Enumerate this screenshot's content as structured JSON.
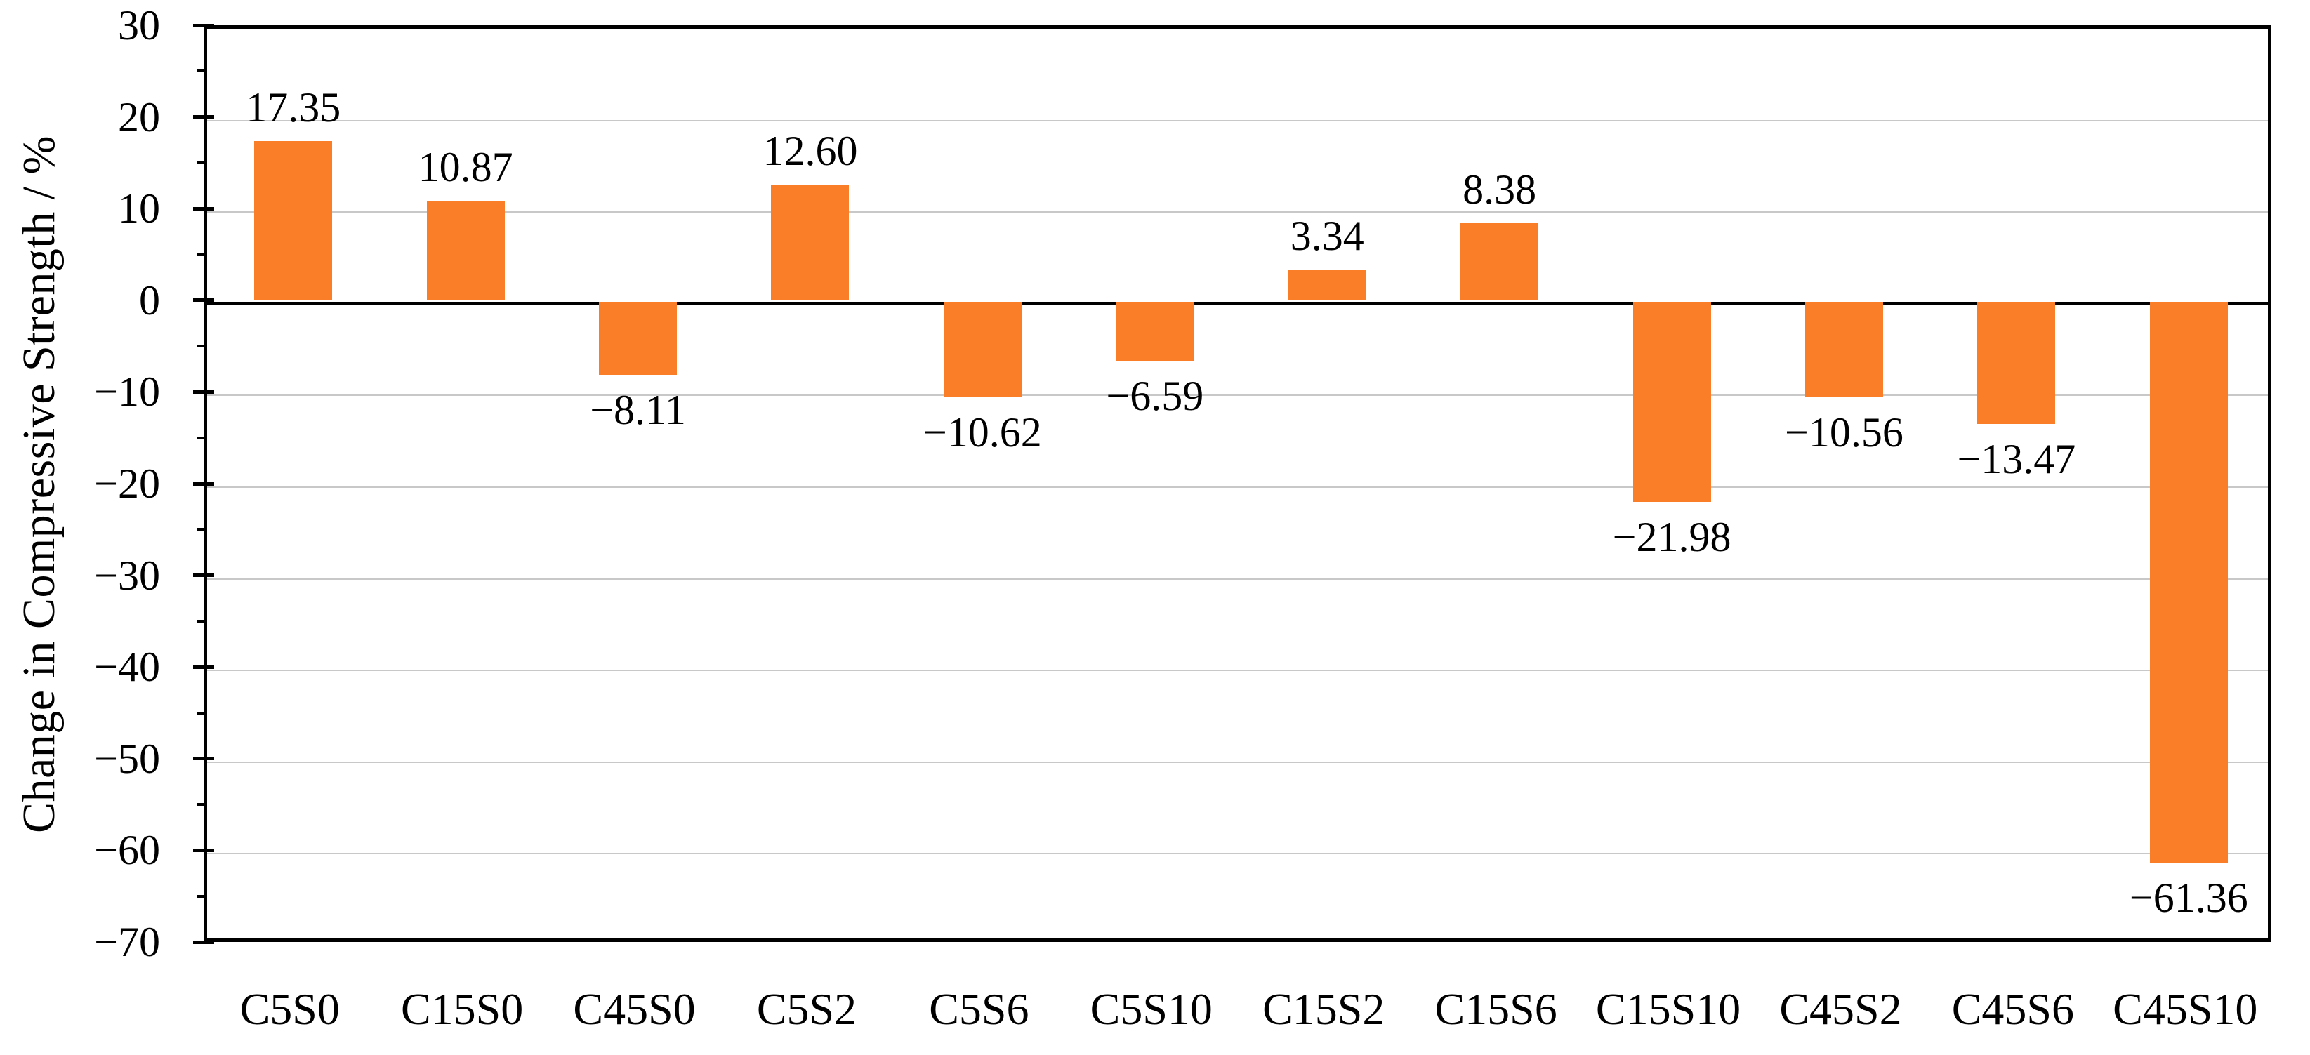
{
  "chart_data": {
    "type": "bar",
    "title": "",
    "xlabel": "",
    "ylabel": "Change in Compressive Strength / %",
    "categories": [
      "C5S0",
      "C15S0",
      "C45S0",
      "C5S2",
      "C5S6",
      "C5S10",
      "C15S2",
      "C15S6",
      "C15S10",
      "C45S2",
      "C45S6",
      "C45S10"
    ],
    "values": [
      17.35,
      10.87,
      -8.11,
      12.6,
      -10.62,
      -6.59,
      3.34,
      8.38,
      -21.98,
      -10.56,
      -13.47,
      -61.36
    ],
    "value_labels": [
      "17.35",
      "10.87",
      "−8.11",
      "12.60",
      "−10.62",
      "−6.59",
      "3.34",
      "8.38",
      "−21.98",
      "−10.56",
      "−13.47",
      "−61.36"
    ],
    "ylim": [
      -70,
      30
    ],
    "y_major_tick_values": [
      30,
      20,
      10,
      0,
      -10,
      -20,
      -30,
      -40,
      -50,
      -60,
      -70
    ],
    "y_tick_labels": [
      "30",
      "20",
      "10",
      "0",
      "−10",
      "−20",
      "−30",
      "−40",
      "−50",
      "−60",
      "−70"
    ],
    "y_minor_tick_values": [
      25,
      15,
      5,
      -5,
      -15,
      -25,
      -35,
      -45,
      -55,
      -65
    ],
    "grid": "horizontal-major",
    "legend_position": "none",
    "bar_color": "#FA7E28",
    "gridline_color": "#c8c8c8",
    "axis_color": "#000000"
  }
}
